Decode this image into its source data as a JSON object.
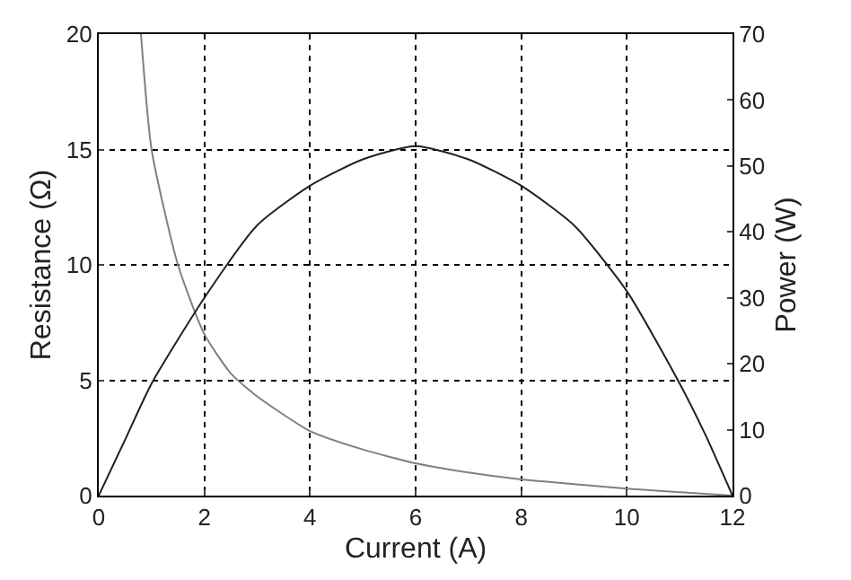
{
  "chart_data": {
    "type": "line",
    "xlabel": "Current (A)",
    "ylabel": "Resistance (Ω)",
    "y2label": "Power (W)",
    "xlim": [
      0,
      12
    ],
    "xticks": [
      0,
      2,
      4,
      6,
      8,
      10,
      12
    ],
    "ylim": [
      0,
      20
    ],
    "yticks": [
      0,
      5,
      10,
      15,
      20
    ],
    "y2lim": [
      0,
      70
    ],
    "y2ticks": [
      0,
      10,
      20,
      30,
      40,
      50,
      60,
      70
    ],
    "grid": true,
    "marker": "none",
    "line_style": "solid",
    "series": [
      {
        "color": "#808080",
        "x": [
          0.8,
          1,
          1.5,
          2,
          2.5,
          3,
          4,
          5,
          6,
          7,
          8,
          9,
          10,
          11,
          12
        ],
        "values": [
          20,
          15,
          10,
          7,
          5.3,
          4.3,
          2.8,
          2,
          1.4,
          1,
          0.7,
          0.5,
          0.3,
          0.15,
          0
        ]
      },
      {
        "color": "#202020",
        "axis": "y2",
        "x": [
          0,
          0.5,
          1,
          2,
          3,
          4,
          5,
          6,
          7,
          8,
          9,
          10,
          11,
          11.5,
          12
        ],
        "values": [
          0,
          8.5,
          17,
          30,
          41,
          47,
          51,
          53,
          51,
          47,
          41,
          31,
          17,
          9,
          0
        ]
      }
    ]
  }
}
